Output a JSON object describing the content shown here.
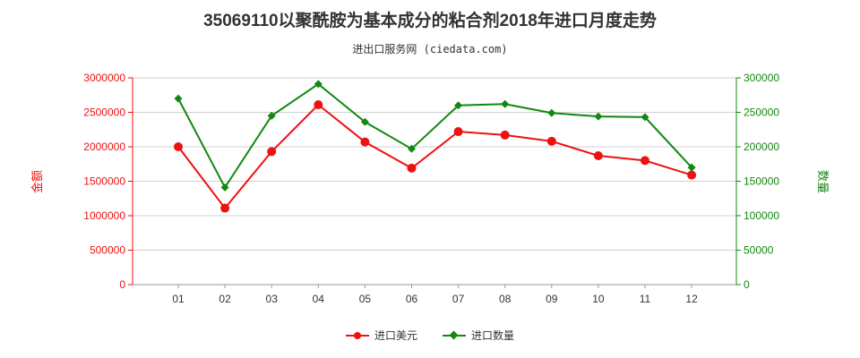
{
  "header": {
    "title": "35069110以聚酰胺为基本成分的粘合剂2018年进口月度走势",
    "subtitle": "进出口服务网 (ciedata.com)"
  },
  "colors": {
    "amount": "#ee1111",
    "quantity": "#118811"
  },
  "chart_data": {
    "type": "line",
    "categories": [
      "01",
      "02",
      "03",
      "04",
      "05",
      "06",
      "07",
      "08",
      "09",
      "10",
      "11",
      "12"
    ],
    "y_left": {
      "label": "金额",
      "min": 0,
      "max": 3000000,
      "step": 500000,
      "ticks": [
        "0",
        "500000",
        "1000000",
        "1500000",
        "2000000",
        "2500000",
        "3000000"
      ]
    },
    "y_right": {
      "label": "数量",
      "min": 0,
      "max": 300000,
      "step": 50000,
      "ticks": [
        "0",
        "50000",
        "100000",
        "150000",
        "200000",
        "250000",
        "300000"
      ]
    },
    "series": [
      {
        "name": "进口美元",
        "axis": "left",
        "color": "#ee1111",
        "values": [
          2000000,
          1110000,
          1930000,
          2610000,
          2070000,
          1690000,
          2220000,
          2170000,
          2080000,
          1870000,
          1800000,
          1590000
        ]
      },
      {
        "name": "进口数量",
        "axis": "right",
        "color": "#118811",
        "values": [
          270000,
          141000,
          245000,
          291000,
          236000,
          197000,
          260000,
          262000,
          249000,
          244000,
          243000,
          170000
        ]
      }
    ],
    "grid": "horizontal",
    "legend_position": "bottom-center"
  }
}
